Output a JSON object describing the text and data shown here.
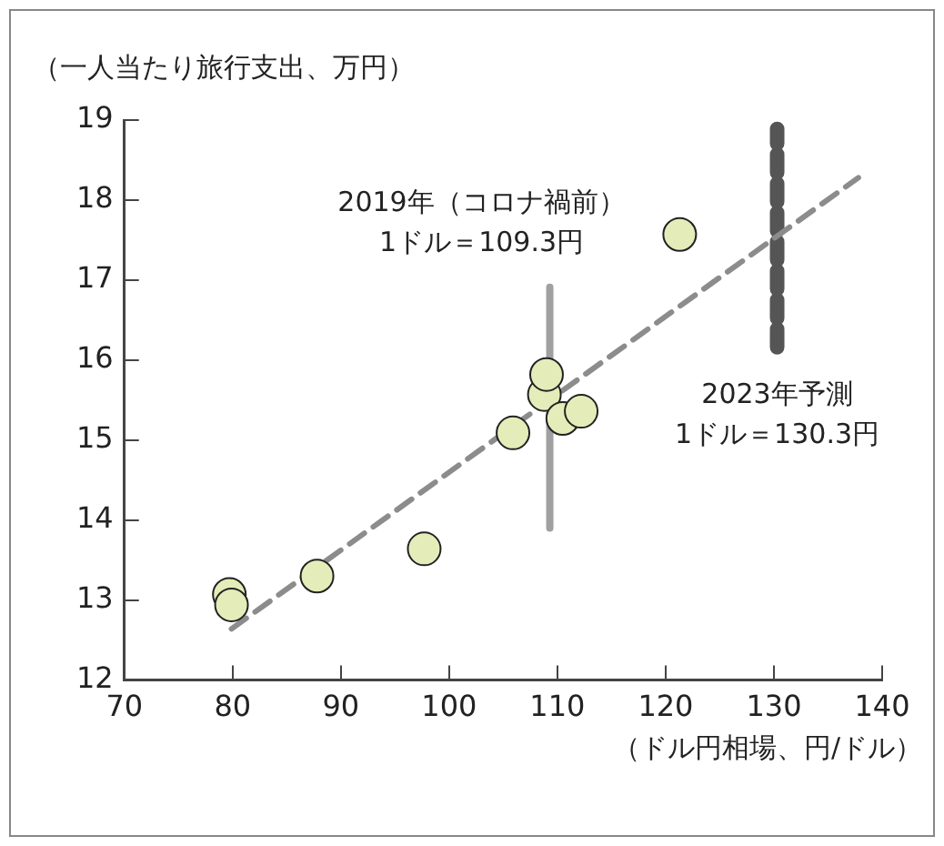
{
  "chart_data": {
    "type": "scatter",
    "ylabel": "（一人当たり旅行支出、万円）",
    "xlabel": "（ドル円相場、円/ドル）",
    "xlim": [
      70,
      140
    ],
    "xticks": [
      70,
      80,
      90,
      100,
      110,
      120,
      130,
      140
    ],
    "ylim": [
      12,
      19
    ],
    "yticks": [
      12,
      13,
      14,
      15,
      16,
      17,
      18,
      19
    ],
    "grid": false,
    "legend": false,
    "series": [
      {
        "type": "line",
        "color": "#8c8c8c",
        "x": [
          79.9,
          137.8
        ],
        "values": [
          12.64,
          18.28
        ],
        "line_style": "dashed",
        "marker": "none"
      },
      {
        "type": "line",
        "color": "#a0a0a0",
        "x": [
          109.3,
          109.3
        ],
        "values": [
          13.9,
          16.91
        ],
        "line_style": "solid",
        "marker": "none"
      },
      {
        "type": "line",
        "color": "#555555",
        "x": [
          130.3,
          130.3
        ],
        "values": [
          16.16,
          18.89
        ],
        "line_style": "dashed",
        "marker": "none"
      },
      {
        "color": "#e4edb9",
        "x": [
          79.7,
          79.9,
          87.8,
          97.7,
          105.9,
          108.8,
          109.0,
          110.5,
          112.2,
          121.3
        ],
        "values": [
          13.07,
          12.94,
          13.3,
          13.64,
          15.09,
          15.57,
          15.82,
          15.27,
          15.36,
          17.57
        ],
        "marker": "circle"
      }
    ],
    "annotations": [
      "2019年（コロナ禍前）",
      "1ドル＝109.3円",
      "2023年予測",
      "1ドル＝130.3円"
    ]
  }
}
